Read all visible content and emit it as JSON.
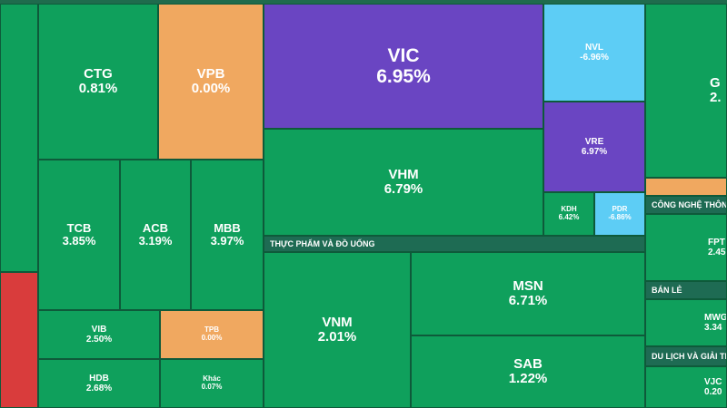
{
  "tiles": {
    "ctg": {
      "ticker": "CTG",
      "change": "0.81%"
    },
    "vpb": {
      "ticker": "VPB",
      "change": "0.00%"
    },
    "vic": {
      "ticker": "VIC",
      "change": "6.95%"
    },
    "nvl": {
      "ticker": "NVL",
      "change": "-6.96%"
    },
    "vre": {
      "ticker": "VRE",
      "change": "6.97%"
    },
    "kdh": {
      "ticker": "KDH",
      "change": "6.42%"
    },
    "pdr": {
      "ticker": "PDR",
      "change": "-6.86%"
    },
    "vhm": {
      "ticker": "VHM",
      "change": "6.79%"
    },
    "tcb": {
      "ticker": "TCB",
      "change": "3.85%"
    },
    "acb": {
      "ticker": "ACB",
      "change": "3.19%"
    },
    "mbb": {
      "ticker": "MBB",
      "change": "3.97%"
    },
    "vib": {
      "ticker": "VIB",
      "change": "2.50%"
    },
    "tpb": {
      "ticker": "TPB",
      "change": "0.00%"
    },
    "hdb": {
      "ticker": "HDB",
      "change": "2.68%"
    },
    "khac": {
      "ticker": "Khác",
      "change": "0.07%"
    },
    "vnm": {
      "ticker": "VNM",
      "change": "2.01%"
    },
    "msn": {
      "ticker": "MSN",
      "change": "6.71%"
    },
    "sab": {
      "ticker": "SAB",
      "change": "1.22%"
    },
    "right_top": {
      "ticker": "G",
      "change": "2."
    },
    "fpt": {
      "ticker": "FPT",
      "change": "2.45"
    },
    "mwg": {
      "ticker": "MWG",
      "change": "3.34"
    },
    "vjc": {
      "ticker": "VJC",
      "change": "0.20"
    }
  },
  "sectors": {
    "food": "THỰC PHẨM VÀ ĐỒ UỐNG",
    "tech": "CÔNG NGHỆ THÔNG",
    "retail": "BÁN LẺ",
    "travel": "DU LỊCH VÀ GIẢI TRÍ"
  },
  "colors": {
    "up": "#0fa05c",
    "flat": "#f0a860",
    "ceiling": "#6a45c2",
    "floor": "#5dcdf5",
    "down": "#d93c3c"
  }
}
